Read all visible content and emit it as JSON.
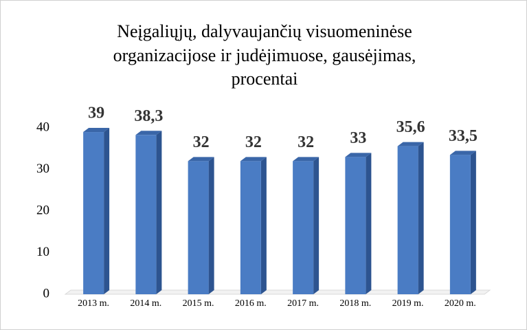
{
  "chart_data": {
    "type": "bar3d",
    "title": [
      "Neįgaliųjų, dalyvaujančių visuomeninėse",
      "organizacijose ir judėjimuose, gausėjimas,",
      "procentai"
    ],
    "categories": [
      "2013 m.",
      "2014 m.",
      "2015 m.",
      "2016 m.",
      "2017 m.",
      "2018 m.",
      "2019 m.",
      "2020 m."
    ],
    "values": [
      39,
      38.3,
      32,
      32,
      32,
      33,
      35.6,
      33.5
    ],
    "value_labels": [
      "39",
      "38,3",
      "32",
      "32",
      "32",
      "33",
      "35,6",
      "33,5"
    ],
    "color": "#4a7cc4",
    "ylim": [
      0,
      40
    ],
    "yticks": [
      0,
      10,
      20,
      30,
      40
    ],
    "grid": false
  }
}
